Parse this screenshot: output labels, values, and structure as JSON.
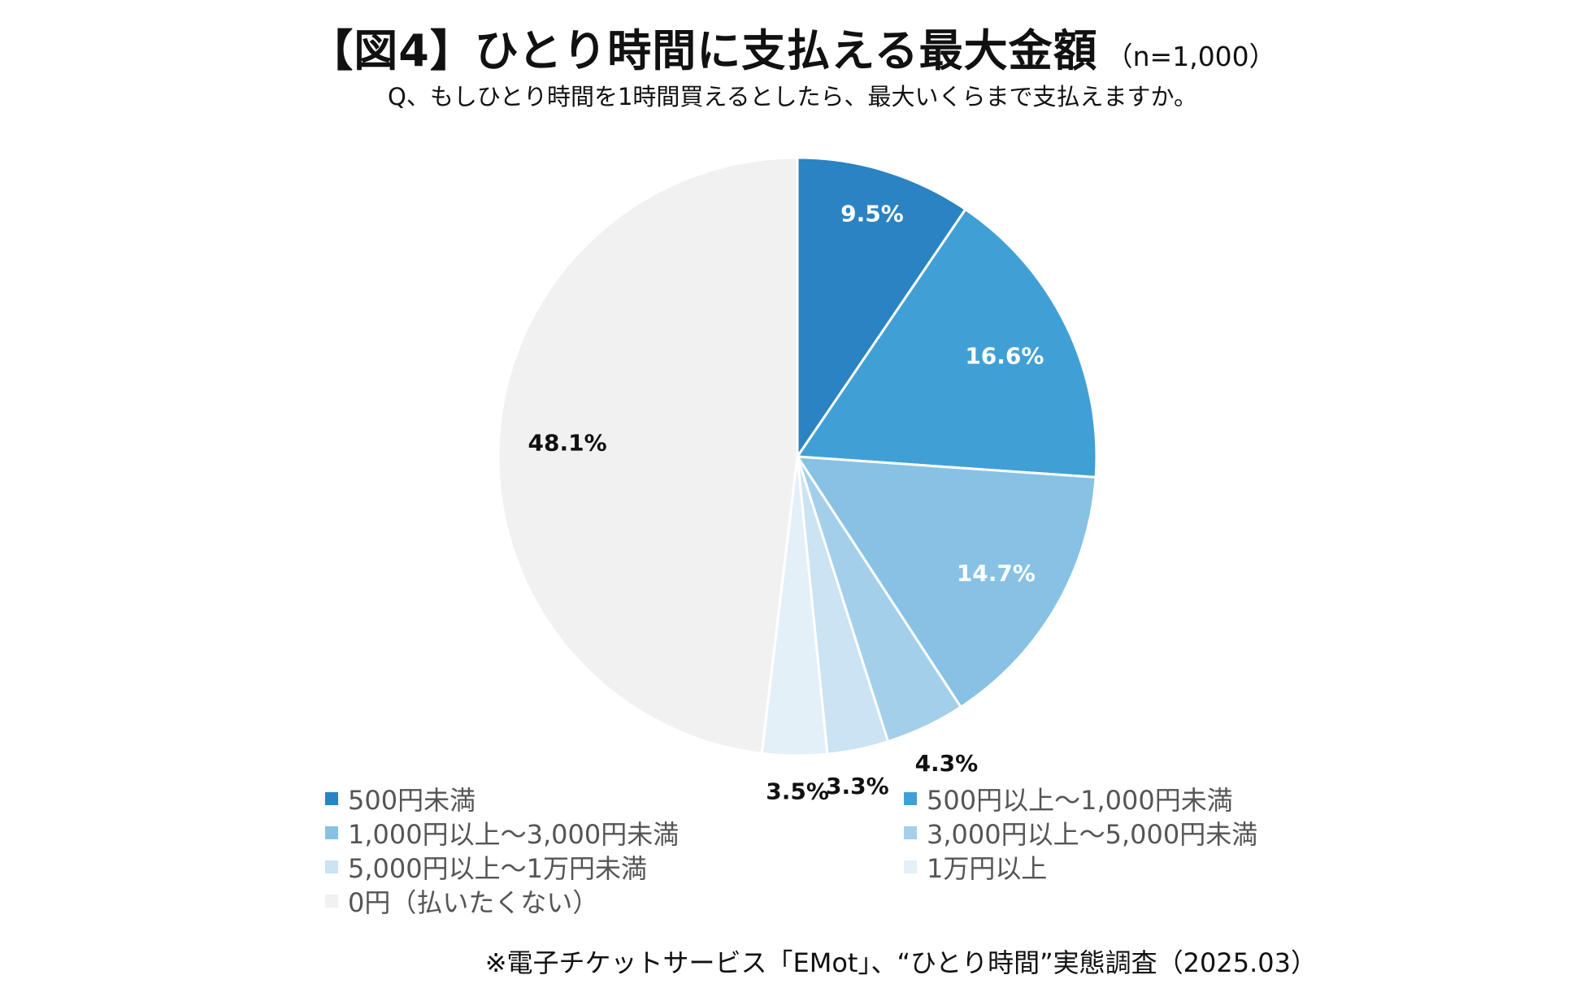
{
  "header": {
    "title": "【図4】ひとり時間に支払える最大金額",
    "sample_size": "（n=1,000）",
    "subtitle": "Q、もしひとり時間を1時間買えるとしたら、最大いくらまで支払えますか。"
  },
  "chart_data": {
    "type": "pie",
    "title": "【図4】ひとり時間に支払える最大金額",
    "start_angle": "12 o'clock, clockwise",
    "legend_position": "bottom",
    "slices": [
      {
        "label": "500円未満",
        "value": 9.5,
        "value_label": "9.5%",
        "color": "#2a83c2",
        "label_color": "#ffffff"
      },
      {
        "label": "500円以上～1,000円未満",
        "value": 16.6,
        "value_label": "16.6%",
        "color": "#40a0d6",
        "label_color": "#ffffff"
      },
      {
        "label": "1,000円以上～3,000円未満",
        "value": 14.7,
        "value_label": "14.7%",
        "color": "#87c2e4",
        "label_color": "#ffffff"
      },
      {
        "label": "3,000円以上～5,000円未満",
        "value": 4.3,
        "value_label": "4.3%",
        "color": "#a4cfea",
        "label_color": "#111111"
      },
      {
        "label": "5,000円以上～1万円未満",
        "value": 3.3,
        "value_label": "3.3%",
        "color": "#cbe3f2",
        "label_color": "#111111"
      },
      {
        "label": "1万円以上",
        "value": 3.5,
        "value_label": "3.5%",
        "color": "#e4f0f8",
        "label_color": "#111111"
      },
      {
        "label": "0円（払いたくない）",
        "value": 48.1,
        "value_label": "48.1%",
        "color": "#f1f1f1",
        "label_color": "#111111"
      }
    ]
  },
  "footer": {
    "source": "※電子チケットサービス「EMot」、“ひとり時間”実態調査（2025.03）"
  }
}
